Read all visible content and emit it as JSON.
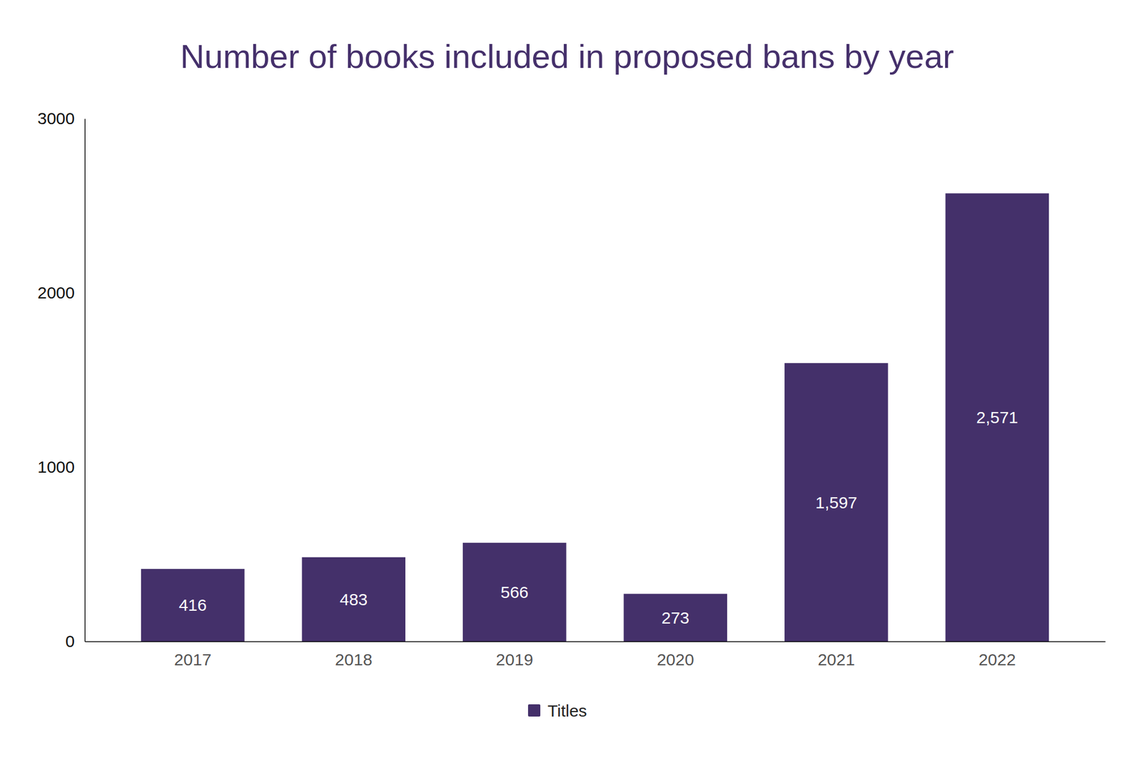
{
  "chart_data": {
    "type": "bar",
    "title": "Number of books included in proposed bans by year",
    "categories": [
      "2017",
      "2018",
      "2019",
      "2020",
      "2021",
      "2022"
    ],
    "series": [
      {
        "name": "Titles",
        "color": "#44306a",
        "values": [
          416,
          483,
          566,
          273,
          1597,
          2571
        ],
        "value_labels": [
          "416",
          "483",
          "566",
          "273",
          "1,597",
          "2,571"
        ]
      }
    ],
    "ylim": [
      0,
      3000
    ],
    "yticks": [
      0,
      1000,
      2000,
      3000
    ],
    "grid": false,
    "legend": "bottom",
    "data_labels": true
  }
}
